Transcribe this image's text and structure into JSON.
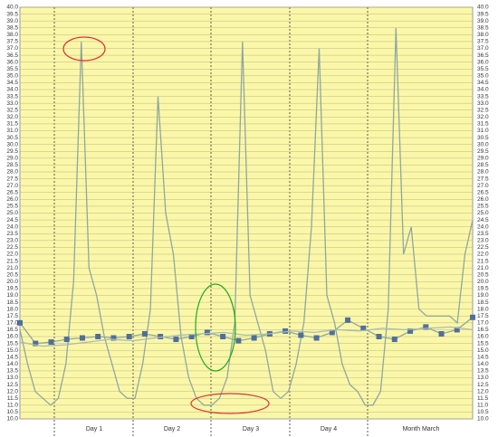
{
  "chart_data": {
    "type": "line",
    "x_labels": [
      "Day 1",
      "Day 2",
      "Day 3",
      "Day 4",
      "Month March"
    ],
    "ylim": [
      10,
      40
    ],
    "yticks": [
      {
        "value": 10,
        "label": "10.0"
      },
      10.5,
      {
        "value": 11,
        "label": "11.0"
      },
      11.5,
      {
        "value": 12,
        "label": "12.0"
      },
      12.5,
      {
        "value": 13,
        "label": "13.0"
      },
      13.5,
      {
        "value": 14,
        "label": "14.0"
      },
      14.5,
      {
        "value": 15,
        "label": "15.0"
      },
      15.5,
      {
        "value": 16,
        "label": "16.0"
      },
      16.5,
      {
        "value": 17,
        "label": "17.0"
      },
      17.5,
      {
        "value": 18,
        "label": "18.0"
      },
      18.5,
      {
        "value": 19,
        "label": "19.0"
      },
      19.5,
      {
        "value": 20,
        "label": "20.0"
      },
      20.5,
      {
        "value": 21,
        "label": "21.0"
      },
      21.5,
      {
        "value": 22,
        "label": "22.0"
      },
      22.5,
      {
        "value": 23,
        "label": "23.0"
      },
      23.5,
      {
        "value": 24,
        "label": "24.0"
      },
      24.5,
      {
        "value": 25,
        "label": "25.0"
      },
      25.5,
      {
        "value": 26,
        "label": "26.0"
      },
      26.5,
      {
        "value": 27,
        "label": "27.0"
      },
      27.5,
      {
        "value": 28,
        "label": "28.0"
      },
      28.5,
      {
        "value": 29,
        "label": "29.0"
      },
      29.5,
      {
        "value": 30,
        "label": "30.0"
      },
      30.5,
      {
        "value": 31,
        "label": "31.0"
      },
      31.5,
      {
        "value": 32,
        "label": "32.0"
      },
      32.5,
      {
        "value": 33,
        "label": "33.0"
      },
      33.5,
      {
        "value": 34,
        "label": "34.0"
      },
      34.5,
      {
        "value": 35,
        "label": "35.0"
      },
      35.5,
      {
        "value": 36,
        "label": "36.0"
      },
      36.5,
      {
        "value": 37,
        "label": "37.0"
      },
      37.5,
      {
        "value": 38,
        "label": "38.0"
      },
      38.5,
      {
        "value": 39,
        "label": "39.0"
      },
      39.5,
      {
        "value": 40,
        "label": "40.0"
      }
    ],
    "grid": true,
    "series": [
      {
        "color": "#8fa8a0",
        "values": [
          16.5,
          14,
          12,
          11.5,
          11,
          11.5,
          14,
          20,
          37.5,
          21,
          19,
          16,
          14,
          12,
          11.5,
          11.5,
          14,
          18,
          33.5,
          25,
          22,
          16,
          13,
          11.5,
          11,
          11,
          11.5,
          13,
          17,
          37.5,
          19,
          17,
          15,
          12,
          11.5,
          12,
          14,
          17,
          24,
          37,
          19,
          17,
          14,
          12.5,
          12,
          11,
          11,
          12,
          18,
          38.5,
          22,
          24,
          18,
          17.5,
          17.5,
          17.5,
          17.5,
          17,
          22,
          24.5
        ]
      },
      {
        "color": "#8fa8a0",
        "marker_color": "#4f6f9a",
        "values": [
          17,
          15.5,
          15.6,
          15.8,
          15.9,
          16,
          15.9,
          16,
          16.2,
          16,
          15.8,
          16,
          16.3,
          16,
          15.7,
          15.9,
          16.2,
          16.4,
          16.1,
          15.9,
          16.3,
          17.2,
          16.6,
          16,
          15.8,
          16.4,
          16.7,
          16.2,
          16.5,
          17.4
        ]
      },
      {
        "color": "#a8bcb4",
        "values": [
          15.6,
          15.3,
          15.4,
          15.6,
          15.8,
          15.7,
          15.9,
          16.1,
          16.2,
          16.3,
          16.1,
          16.2,
          16.4,
          16.3,
          16.5,
          16.4,
          16.6,
          16.5,
          16.6,
          16.7,
          16.5
        ]
      }
    ]
  }
}
